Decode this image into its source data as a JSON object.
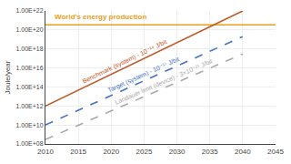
{
  "chart_data": {
    "type": "line",
    "ylabel": "Joule/year",
    "log": "y",
    "grid": true,
    "xlim": [
      2010,
      2045
    ],
    "ylim": [
      100000000.0,
      1e+22
    ],
    "xticks": [
      2010,
      2015,
      2020,
      2025,
      2030,
      2035,
      2040,
      2045
    ],
    "yticks": [
      {
        "value": 100000000.0,
        "label": "1.00E+08"
      },
      {
        "value": 10000000000.0,
        "label": "1.00E+10"
      },
      {
        "value": 1000000000000.0,
        "label": "1.00E+12"
      },
      {
        "value": 100000000000000.0,
        "label": "1.00E+14"
      },
      {
        "value": 1e+16,
        "label": "1.00E+16"
      },
      {
        "value": 1e+18,
        "label": "1.00E+18"
      },
      {
        "value": 1e+20,
        "label": "1.00E+20"
      },
      {
        "value": 1e+22,
        "label": "1.00E+22"
      }
    ],
    "series": [
      {
        "name": "World's energy production",
        "color": "#E8A020",
        "line_style": "solid",
        "x": [
          2010,
          2045
        ],
        "values": [
          3.5e+20,
          3.5e+20
        ]
      },
      {
        "name": "Benchmark (system) - 10⁻¹⁴ J/bit",
        "color": "#C05828",
        "line_style": "solid",
        "x": [
          2010,
          2040
        ],
        "values": [
          1000000000000.0,
          1e+22
        ]
      },
      {
        "name": "Target (system) - 10⁻¹⁷ J/bit",
        "color": "#4472C4",
        "line_style": "dashed",
        "x": [
          2010,
          2040
        ],
        "values": [
          10000000000.0,
          2e+19
        ]
      },
      {
        "name": "Landauer limit (device) - 3×10⁻²¹ J/bit",
        "color": "#AAAAAA",
        "line_style": "dashed",
        "x": [
          2010,
          2040
        ],
        "values": [
          300000000.0,
          3e+17
        ]
      }
    ]
  }
}
